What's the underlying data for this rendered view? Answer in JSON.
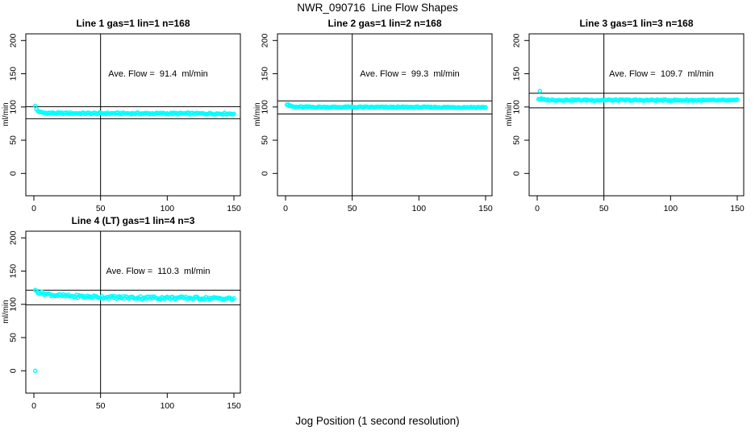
{
  "chart_data": {
    "type": "scatter",
    "title": "NWR_090716  Line Flow Shapes",
    "xlabel": "Jog Position (1 second resolution)",
    "ylabel": "ml/min",
    "x_ticks": [
      0,
      50,
      100,
      150
    ],
    "y_ticks": [
      0,
      50,
      100,
      150,
      200
    ],
    "xlim": [
      0,
      155
    ],
    "ylim": [
      0,
      200
    ],
    "x_range_points": [
      1,
      150
    ],
    "grid": false,
    "legend": "none",
    "marker": "open-circle",
    "marker_color": "#00ffff",
    "line_color": "#000000",
    "reference_vline_x": 50,
    "panels": [
      {
        "title": "Line 1 gas=1 lin=1 n=168",
        "ave_label": "Ave. Flow =  91.4  ml/min",
        "ave_flow": 91.4,
        "gas": 1,
        "lin": 1,
        "n": 168,
        "hline_upper": 100.5,
        "hline_lower": 82.3,
        "profile": [
          [
            1,
            101
          ],
          [
            2,
            96.5
          ],
          [
            3,
            94
          ],
          [
            5,
            92
          ],
          [
            8,
            91
          ],
          [
            20,
            90.5
          ],
          [
            150,
            90
          ]
        ],
        "extra_points": [],
        "jitter": 1.2,
        "seed": 1
      },
      {
        "title": "Line 2 gas=1 lin=2 n=168",
        "ave_label": "Ave. Flow =  99.3  ml/min",
        "ave_flow": 99.3,
        "gas": 1,
        "lin": 2,
        "n": 168,
        "hline_upper": 109.2,
        "hline_lower": 89.4,
        "profile": [
          [
            2,
            104
          ],
          [
            3,
            102
          ],
          [
            5,
            100.5
          ],
          [
            8,
            100
          ],
          [
            150,
            99.5
          ]
        ],
        "extra_points": [],
        "jitter": 0.9,
        "seed": 2
      },
      {
        "title": "Line 3 gas=1 lin=3 n=168",
        "ave_label": "Ave. Flow =  109.7  ml/min",
        "ave_flow": 109.7,
        "gas": 1,
        "lin": 3,
        "n": 168,
        "hline_upper": 120.7,
        "hline_lower": 98.7,
        "profile": [
          [
            3,
            112
          ],
          [
            5,
            111
          ],
          [
            10,
            110.5
          ],
          [
            150,
            110
          ]
        ],
        "extra_points": [
          [
            2,
            124
          ]
        ],
        "jitter": 1.0,
        "seed": 3
      },
      {
        "title": "Line 4 (LT) gas=1 lin=4 n=3",
        "ave_label": "Ave. Flow =  110.3  ml/min",
        "ave_flow": 110.3,
        "gas": 1,
        "lin": 4,
        "n": 3,
        "hline_upper": 121.3,
        "hline_lower": 99.3,
        "profile": [
          [
            2,
            120
          ],
          [
            4,
            118
          ],
          [
            8,
            116
          ],
          [
            15,
            114
          ],
          [
            25,
            112.5
          ],
          [
            40,
            111.5
          ],
          [
            60,
            110.5
          ],
          [
            90,
            110
          ],
          [
            120,
            109.5
          ],
          [
            150,
            108.5
          ]
        ],
        "extra_points": [
          [
            1,
            0
          ]
        ],
        "jitter": 2.2,
        "seed": 4
      }
    ]
  }
}
